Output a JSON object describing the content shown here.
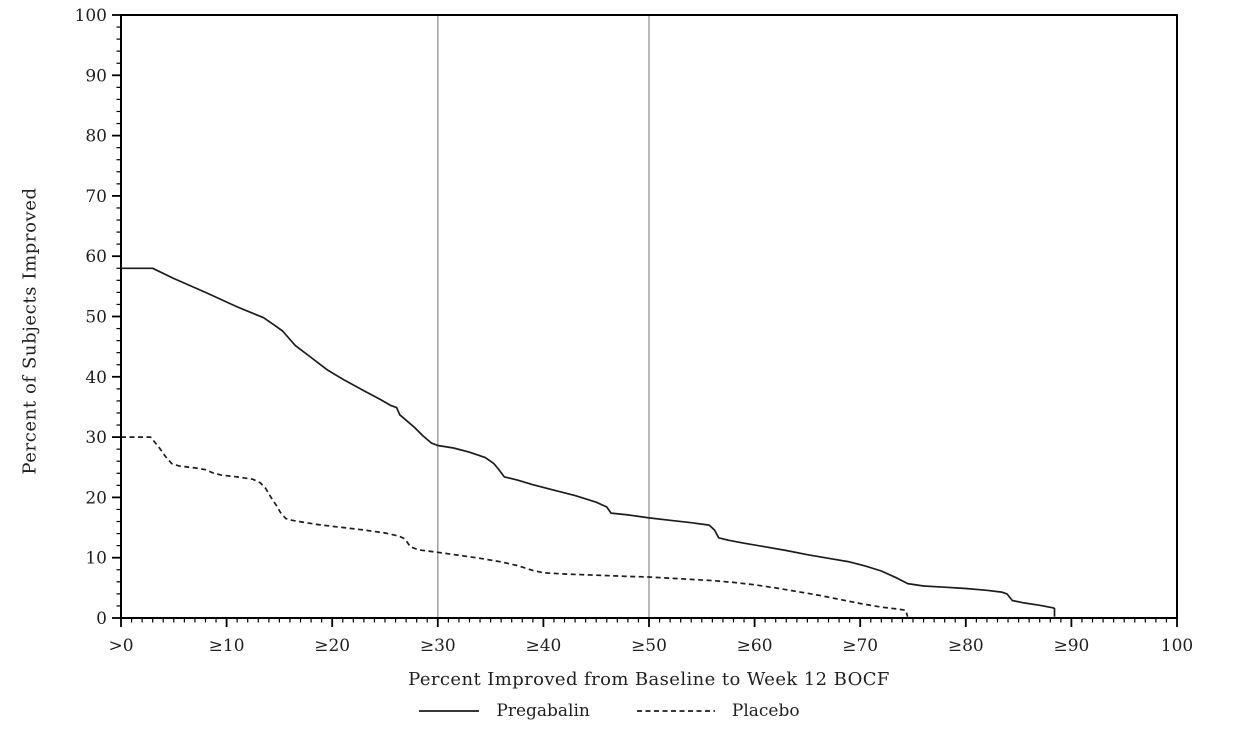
{
  "figure": {
    "background": "#ffffff",
    "axis_color": "#000000",
    "ref_line_color": "#9a9a9a",
    "line_color": "#1c1c1c",
    "text_color": "#1f1f1f"
  },
  "chart_data": {
    "type": "line",
    "title": "",
    "xlabel": "Percent Improved from Baseline to Week 12 BOCF",
    "ylabel": "Percent of Subjects Improved",
    "xlim": [
      0,
      100
    ],
    "ylim": [
      0,
      100
    ],
    "grid": "off",
    "legend_position": "bottom",
    "x_ticks": {
      "values": [
        0,
        10,
        20,
        30,
        40,
        50,
        60,
        70,
        80,
        90,
        100
      ],
      "labels": [
        ">0",
        "≥10",
        "≥20",
        "≥30",
        "≥40",
        "≥50",
        "≥60",
        "≥70",
        "≥80",
        "≥90",
        "100"
      ],
      "minor_step": 1
    },
    "y_ticks": {
      "values": [
        0,
        10,
        20,
        30,
        40,
        50,
        60,
        70,
        80,
        90,
        100
      ],
      "labels": [
        "0",
        "10",
        "20",
        "30",
        "40",
        "50",
        "60",
        "70",
        "80",
        "90",
        "100"
      ],
      "minor_step": 2
    },
    "reference_lines_x": [
      30,
      50
    ],
    "series": [
      {
        "name": "Pregabalin",
        "line_style": "solid",
        "points": [
          [
            0,
            58
          ],
          [
            3,
            58
          ],
          [
            5,
            56.3
          ],
          [
            8,
            54
          ],
          [
            11,
            51.6
          ],
          [
            13.5,
            49.8
          ],
          [
            14.5,
            48.6
          ],
          [
            15.3,
            47.6
          ],
          [
            16.5,
            45.2
          ],
          [
            18,
            43.2
          ],
          [
            19.5,
            41.2
          ],
          [
            21,
            39.6
          ],
          [
            23,
            37.7
          ],
          [
            24.5,
            36.3
          ],
          [
            25.6,
            35.2
          ],
          [
            26.1,
            34.9
          ],
          [
            26.4,
            33.7
          ],
          [
            27,
            32.8
          ],
          [
            27.8,
            31.6
          ],
          [
            28.6,
            30.2
          ],
          [
            29.4,
            29
          ],
          [
            30,
            28.6
          ],
          [
            31.5,
            28.2
          ],
          [
            33,
            27.5
          ],
          [
            34.5,
            26.6
          ],
          [
            35.3,
            25.6
          ],
          [
            35.7,
            24.8
          ],
          [
            36.3,
            23.4
          ],
          [
            37.5,
            22.9
          ],
          [
            39,
            22.1
          ],
          [
            41,
            21.2
          ],
          [
            43,
            20.3
          ],
          [
            45,
            19.2
          ],
          [
            46,
            18.4
          ],
          [
            46.4,
            17.4
          ],
          [
            48,
            17.1
          ],
          [
            50,
            16.6
          ],
          [
            52,
            16.2
          ],
          [
            54,
            15.8
          ],
          [
            55.7,
            15.4
          ],
          [
            56.2,
            14.6
          ],
          [
            56.6,
            13.3
          ],
          [
            57.5,
            12.9
          ],
          [
            59,
            12.4
          ],
          [
            61,
            11.8
          ],
          [
            63,
            11.2
          ],
          [
            65,
            10.5
          ],
          [
            67,
            9.9
          ],
          [
            69,
            9.3
          ],
          [
            70.5,
            8.6
          ],
          [
            72,
            7.8
          ],
          [
            73.5,
            6.6
          ],
          [
            74.5,
            5.7
          ],
          [
            76,
            5.3
          ],
          [
            78,
            5.1
          ],
          [
            80,
            4.9
          ],
          [
            82,
            4.6
          ],
          [
            83.4,
            4.3
          ],
          [
            83.9,
            4.0
          ],
          [
            84.4,
            2.9
          ],
          [
            85.5,
            2.5
          ],
          [
            87,
            2.1
          ],
          [
            88.2,
            1.7
          ],
          [
            88.4,
            1.6
          ],
          [
            88.4,
            0.2
          ]
        ]
      },
      {
        "name": "Placebo",
        "line_style": "dashed",
        "points": [
          [
            0,
            30
          ],
          [
            2.8,
            30
          ],
          [
            3.6,
            28.3
          ],
          [
            4.2,
            26.8
          ],
          [
            4.8,
            25.6
          ],
          [
            5.5,
            25.2
          ],
          [
            7,
            24.9
          ],
          [
            8,
            24.6
          ],
          [
            8.8,
            24
          ],
          [
            9.5,
            23.7
          ],
          [
            11,
            23.4
          ],
          [
            12.5,
            23
          ],
          [
            13.2,
            22.4
          ],
          [
            13.7,
            21.5
          ],
          [
            14.2,
            20
          ],
          [
            14.7,
            18.7
          ],
          [
            15.1,
            17.5
          ],
          [
            15.6,
            16.5
          ],
          [
            16.2,
            16.2
          ],
          [
            17.5,
            15.8
          ],
          [
            19,
            15.4
          ],
          [
            21,
            15
          ],
          [
            23,
            14.6
          ],
          [
            25,
            14.1
          ],
          [
            26.3,
            13.6
          ],
          [
            26.9,
            13.1
          ],
          [
            27.4,
            11.8
          ],
          [
            28.2,
            11.3
          ],
          [
            30,
            10.9
          ],
          [
            32,
            10.4
          ],
          [
            34,
            9.9
          ],
          [
            36,
            9.3
          ],
          [
            37.5,
            8.7
          ],
          [
            39,
            7.9
          ],
          [
            40,
            7.5
          ],
          [
            42,
            7.3
          ],
          [
            45,
            7.1
          ],
          [
            48,
            6.9
          ],
          [
            50,
            6.8
          ],
          [
            52,
            6.6
          ],
          [
            54,
            6.4
          ],
          [
            56,
            6.2
          ],
          [
            58,
            5.9
          ],
          [
            60,
            5.5
          ],
          [
            62,
            5.0
          ],
          [
            64,
            4.4
          ],
          [
            66,
            3.8
          ],
          [
            68,
            3.1
          ],
          [
            70,
            2.4
          ],
          [
            72,
            1.8
          ],
          [
            73.5,
            1.5
          ],
          [
            74.3,
            1.3
          ],
          [
            74.5,
            0.2
          ]
        ]
      }
    ]
  }
}
